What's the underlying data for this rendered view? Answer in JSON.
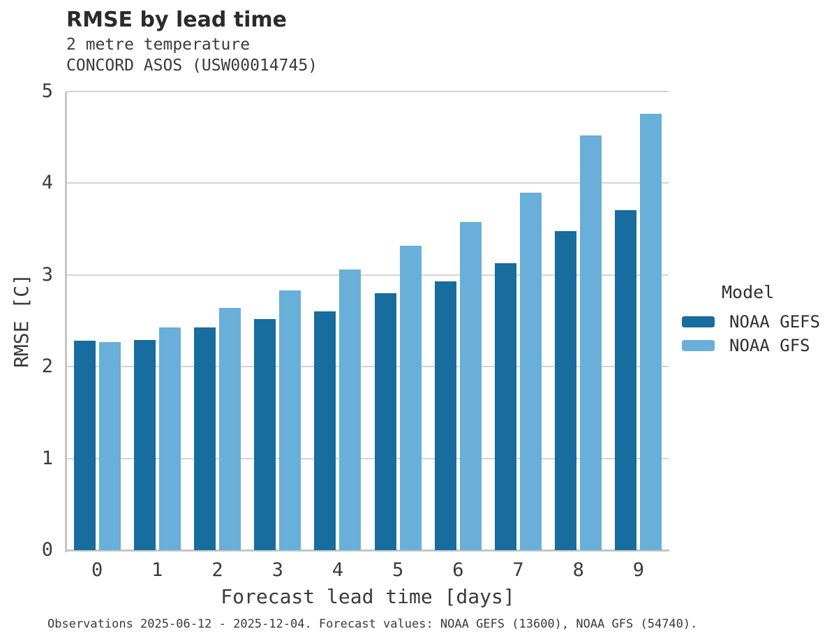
{
  "header": {
    "title": "RMSE by lead time",
    "subtitle_line1": "2 metre temperature",
    "subtitle_line2": "CONCORD ASOS (USW00014745)"
  },
  "footer": {
    "caption": "Observations 2025-06-12 - 2025-12-04. Forecast values: NOAA GEFS (13600), NOAA GFS (54740)."
  },
  "colors": {
    "gefs_bar": "#176d9d",
    "gfs_bar": "#68afd9",
    "gridline": "#d4d4d4",
    "axis_spine": "#c6c6c6",
    "text": "#3a3a3a"
  },
  "chart_data": {
    "type": "bar",
    "title": "RMSE by lead time",
    "subtitle": [
      "2 metre temperature",
      "CONCORD ASOS (USW00014745)"
    ],
    "categories": [
      "0",
      "1",
      "2",
      "3",
      "4",
      "5",
      "6",
      "7",
      "8",
      "9"
    ],
    "series": [
      {
        "name": "NOAA GEFS",
        "color": "#176d9d",
        "values": [
          2.28,
          2.29,
          2.43,
          2.52,
          2.6,
          2.8,
          2.93,
          3.13,
          3.48,
          3.71
        ]
      },
      {
        "name": "NOAA GFS",
        "color": "#68afd9",
        "values": [
          2.27,
          2.43,
          2.64,
          2.83,
          3.06,
          3.32,
          3.58,
          3.9,
          4.52,
          4.76
        ]
      }
    ],
    "xlabel": "Forecast lead time [days]",
    "ylabel": "RMSE [C]",
    "ylim": [
      0,
      5
    ],
    "yticks": [
      0,
      1,
      2,
      3,
      4,
      5
    ],
    "grid": true,
    "legend_title": "Model",
    "legend_position": "right"
  }
}
